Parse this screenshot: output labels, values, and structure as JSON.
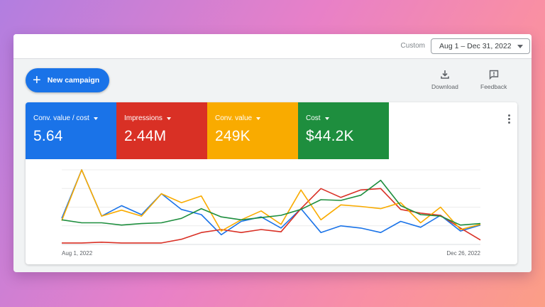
{
  "header": {
    "custom_label": "Custom",
    "date_range": "Aug 1 – Dec 31, 2022"
  },
  "actions": {
    "new_campaign": "New campaign",
    "download": "Download",
    "feedback": "Feedback"
  },
  "metrics": [
    {
      "label": "Conv. value / cost",
      "value": "5.64",
      "color": "#1a73e8"
    },
    {
      "label": "Impressions",
      "value": "2.44M",
      "color": "#d93025"
    },
    {
      "label": "Conv. value",
      "value": "249K",
      "color": "#f9ab00"
    },
    {
      "label": "Cost",
      "value": "$44.2K",
      "color": "#1e8e3e"
    }
  ],
  "icons": [
    "plus-icon",
    "download-icon",
    "feedback-icon",
    "more-vert-icon",
    "dropdown-caret-icon"
  ],
  "chart_data": {
    "type": "line",
    "x_labels": [
      "Aug 1, 2022",
      "Dec 26, 2022"
    ],
    "x": [
      0,
      1,
      2,
      3,
      4,
      5,
      6,
      7,
      8,
      9,
      10,
      11,
      12,
      13,
      14,
      15,
      16,
      17,
      18,
      19,
      20,
      21
    ],
    "ylim": [
      0,
      100
    ],
    "grid": true,
    "series": [
      {
        "color": "#1a73e8",
        "values": [
          35,
          100,
          38,
          52,
          40,
          68,
          47,
          40,
          13,
          31,
          37,
          22,
          48,
          16,
          25,
          22,
          16,
          31,
          23,
          39,
          18,
          26
        ]
      },
      {
        "color": "#d93025",
        "values": [
          2,
          2,
          3,
          2,
          2,
          2,
          7,
          16,
          20,
          16,
          20,
          17,
          48,
          75,
          63,
          73,
          75,
          47,
          42,
          39,
          22,
          6
        ]
      },
      {
        "color": "#f9ab00",
        "values": [
          32,
          100,
          38,
          46,
          38,
          68,
          56,
          65,
          18,
          33,
          45,
          27,
          73,
          33,
          53,
          51,
          48,
          56,
          29,
          50,
          20,
          27
        ]
      },
      {
        "color": "#1e8e3e",
        "values": [
          33,
          29,
          29,
          26,
          28,
          29,
          35,
          48,
          37,
          33,
          36,
          39,
          47,
          60,
          59,
          66,
          86,
          52,
          40,
          38,
          26,
          28
        ]
      }
    ]
  }
}
